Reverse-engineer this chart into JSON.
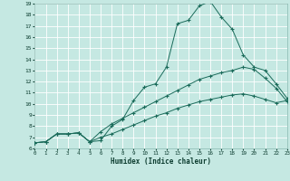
{
  "xlabel": "Humidex (Indice chaleur)",
  "bg_color": "#c5e8e2",
  "grid_color": "#ffffff",
  "line_color": "#1a6b5a",
  "xlim": [
    0,
    23
  ],
  "ylim": [
    6,
    19
  ],
  "xtick_vals": [
    0,
    1,
    2,
    3,
    4,
    5,
    6,
    7,
    8,
    9,
    10,
    11,
    12,
    13,
    14,
    15,
    16,
    17,
    18,
    19,
    20,
    21,
    22,
    23
  ],
  "ytick_vals": [
    6,
    7,
    8,
    9,
    10,
    11,
    12,
    13,
    14,
    15,
    16,
    17,
    18,
    19
  ],
  "curve1_x": [
    0,
    1,
    2,
    3,
    4,
    5,
    6,
    7,
    8,
    9,
    10,
    11,
    12,
    13,
    14,
    15,
    16,
    17,
    18,
    19,
    20,
    21,
    22,
    23
  ],
  "curve1_y": [
    6.5,
    6.6,
    7.3,
    7.3,
    7.4,
    6.6,
    6.7,
    8.0,
    8.6,
    10.3,
    11.5,
    11.8,
    13.3,
    17.2,
    17.5,
    18.8,
    19.2,
    17.8,
    16.7,
    14.4,
    13.3,
    13.0,
    11.8,
    10.5
  ],
  "curve2_x": [
    0,
    1,
    2,
    3,
    4,
    5,
    6,
    7,
    8,
    9,
    10,
    11,
    12,
    13,
    14,
    15,
    16,
    17,
    18,
    19,
    20,
    21,
    22,
    23
  ],
  "curve2_y": [
    6.5,
    6.6,
    7.3,
    7.3,
    7.4,
    6.6,
    7.5,
    8.2,
    8.7,
    9.2,
    9.7,
    10.2,
    10.7,
    11.2,
    11.7,
    12.2,
    12.5,
    12.8,
    13.0,
    13.3,
    13.1,
    12.3,
    11.4,
    10.2
  ],
  "curve3_x": [
    0,
    1,
    2,
    3,
    4,
    5,
    6,
    7,
    8,
    9,
    10,
    11,
    12,
    13,
    14,
    15,
    16,
    17,
    18,
    19,
    20,
    21,
    22,
    23
  ],
  "curve3_y": [
    6.5,
    6.6,
    7.3,
    7.3,
    7.4,
    6.6,
    7.0,
    7.3,
    7.7,
    8.1,
    8.5,
    8.9,
    9.2,
    9.6,
    9.9,
    10.2,
    10.4,
    10.6,
    10.8,
    10.9,
    10.7,
    10.4,
    10.1,
    10.3
  ]
}
